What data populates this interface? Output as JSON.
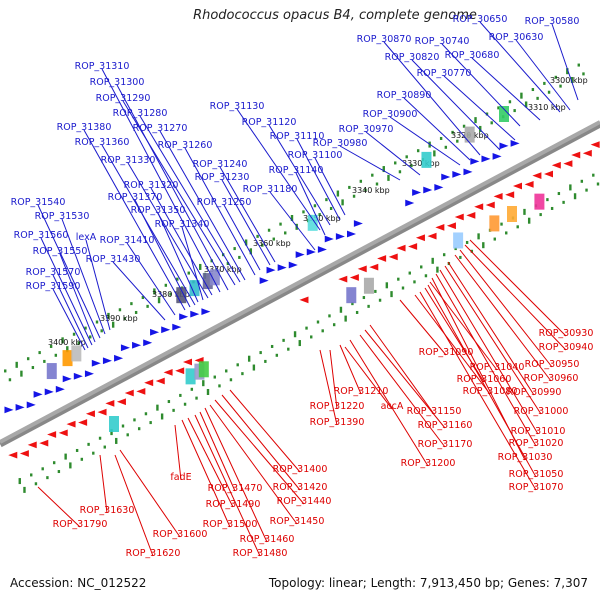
{
  "title": "Rhodococcus opacus B4, complete genome",
  "footer": {
    "accession": "Accession: NC_012522",
    "summary": "Topology: linear; Length: 7,913,450 bp; Genes: 7,307"
  },
  "colors": {
    "forward_label": "#1a1acc",
    "reverse_label": "#dd0000",
    "backbone": "#a8a8a8",
    "tick": "#2e8b2e",
    "forward_gene": "#1515e6",
    "reverse_gene": "#ee1111"
  },
  "scale_labels": [
    "3300 kbp",
    "3310 kbp",
    "3320 kbp",
    "3330 kbp",
    "3340 kbp",
    "3350 kbp",
    "3360 kbp",
    "3370 kbp",
    "3380 kbp",
    "3390 kbp",
    "3400 kbp"
  ],
  "forward_genes": [
    "ROP_30580",
    "ROP_30630",
    "ROP_30650",
    "ROP_30680",
    "ROP_30740",
    "ROP_30770",
    "ROP_30820",
    "ROP_30870",
    "ROP_30890",
    "ROP_30900",
    "ROP_30970",
    "ROP_30980",
    "ROP_31100",
    "ROP_31110",
    "ROP_31120",
    "ROP_31130",
    "ROP_31140",
    "ROP_31180",
    "ROP_31230",
    "ROP_31240",
    "ROP_31250",
    "ROP_31260",
    "ROP_31270",
    "ROP_31280",
    "ROP_31290",
    "ROP_31300",
    "ROP_31310",
    "ROP_31320",
    "ROP_31330",
    "ROP_31340",
    "ROP_31350",
    "ROP_31360",
    "ROP_31370",
    "ROP_31380",
    "ROP_31410",
    "ROP_31430",
    "lexA",
    "ROP_31530",
    "ROP_31540",
    "ROP_31550",
    "ROP_31560",
    "ROP_31570",
    "ROP_31590"
  ],
  "reverse_genes": [
    "ROP_30930",
    "ROP_30940",
    "ROP_30950",
    "ROP_30960",
    "ROP_30990",
    "ROP_31000",
    "ROP_31010",
    "ROP_31020",
    "ROP_31030",
    "ROP_31040",
    "ROP_31050",
    "ROP_31060",
    "ROP_31070",
    "ROP_31080",
    "ROP_31090",
    "ROP_31150",
    "ROP_31160",
    "ROP_31170",
    "ROP_31200",
    "ROP_31210",
    "ROP_31220",
    "accA",
    "ROP_31390",
    "ROP_31400",
    "ROP_31420",
    "ROP_31440",
    "ROP_31450",
    "ROP_31460",
    "ROP_31470",
    "ROP_31480",
    "ROP_31490",
    "ROP_31500",
    "fadE",
    "ROP_31600",
    "ROP_31620",
    "ROP_31630",
    "ROP_31790"
  ]
}
